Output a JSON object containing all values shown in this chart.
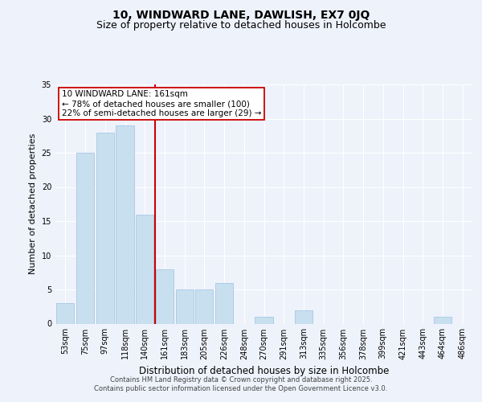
{
  "title": "10, WINDWARD LANE, DAWLISH, EX7 0JQ",
  "subtitle": "Size of property relative to detached houses in Holcombe",
  "xlabel": "Distribution of detached houses by size in Holcombe",
  "ylabel": "Number of detached properties",
  "categories": [
    "53sqm",
    "75sqm",
    "97sqm",
    "118sqm",
    "140sqm",
    "161sqm",
    "183sqm",
    "205sqm",
    "226sqm",
    "248sqm",
    "270sqm",
    "291sqm",
    "313sqm",
    "335sqm",
    "356sqm",
    "378sqm",
    "399sqm",
    "421sqm",
    "443sqm",
    "464sqm",
    "486sqm"
  ],
  "values": [
    3,
    25,
    28,
    29,
    16,
    8,
    5,
    5,
    6,
    0,
    1,
    0,
    2,
    0,
    0,
    0,
    0,
    0,
    0,
    1,
    0
  ],
  "bar_color": "#c8dff0",
  "bar_edge_color": "#a8c8e0",
  "highlight_line_color": "#cc0000",
  "annotation_line1": "10 WINDWARD LANE: 161sqm",
  "annotation_line2": "← 78% of detached houses are smaller (100)",
  "annotation_line3": "22% of semi-detached houses are larger (29) →",
  "annotation_box_color": "#ffffff",
  "annotation_box_edge_color": "#cc0000",
  "ylim": [
    0,
    35
  ],
  "yticks": [
    0,
    5,
    10,
    15,
    20,
    25,
    30,
    35
  ],
  "background_color": "#eef2fb",
  "grid_color": "#ffffff",
  "footer_line1": "Contains HM Land Registry data © Crown copyright and database right 2025.",
  "footer_line2": "Contains public sector information licensed under the Open Government Licence v3.0.",
  "title_fontsize": 10,
  "subtitle_fontsize": 9,
  "xlabel_fontsize": 8.5,
  "ylabel_fontsize": 8,
  "tick_fontsize": 7,
  "annotation_fontsize": 7.5,
  "footer_fontsize": 6
}
